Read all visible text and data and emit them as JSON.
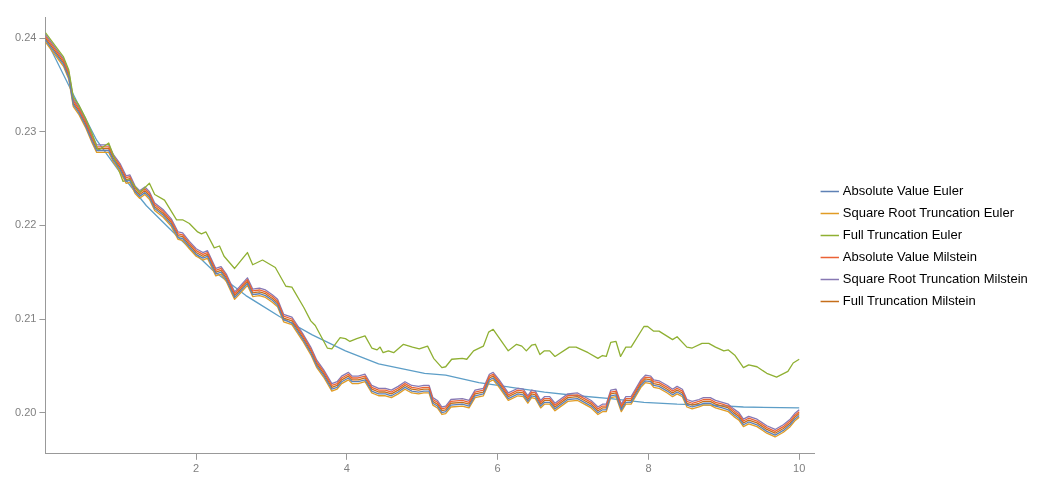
{
  "chart_data": {
    "type": "line",
    "legend": "right",
    "grid": false,
    "marker": "none",
    "line_style": "solid",
    "xlim": [
      0,
      10.2
    ],
    "ylim": [
      0.1956,
      0.2422
    ],
    "xticks": [
      2,
      4,
      6,
      8,
      10
    ],
    "yticks": [
      {
        "value": 0.2,
        "label": "0.20"
      },
      {
        "value": 0.21,
        "label": "0.21"
      },
      {
        "value": 0.22,
        "label": "0.22"
      },
      {
        "value": 0.23,
        "label": "0.23"
      },
      {
        "value": 0.24,
        "label": "0.24"
      }
    ],
    "x": [
      0,
      0.24,
      0.31,
      0.37,
      0.44,
      0.53,
      0.62,
      0.68,
      0.75,
      0.84,
      0.9,
      0.99,
      1.07,
      1.12,
      1.19,
      1.25,
      1.32,
      1.38,
      1.45,
      1.56,
      1.67,
      1.76,
      1.82,
      1.91,
      2,
      2.09,
      2.15,
      2.22,
      2.26,
      2.33,
      2.4,
      2.51,
      2.57,
      2.68,
      2.75,
      2.84,
      2.92,
      3.01,
      3.08,
      3.16,
      3.27,
      3.41,
      3.52,
      3.6,
      3.69,
      3.8,
      3.87,
      3.93,
      4.02,
      4.07,
      4.15,
      4.24,
      4.33,
      4.42,
      4.51,
      4.59,
      4.68,
      4.77,
      4.86,
      4.95,
      5.02,
      5.09,
      5.14,
      5.2,
      5.26,
      5.31,
      5.38,
      5.53,
      5.62,
      5.7,
      5.81,
      5.89,
      5.94,
      6.02,
      6.14,
      6.27,
      6.34,
      6.4,
      6.45,
      6.5,
      6.57,
      6.62,
      6.69,
      6.76,
      6.93,
      7.06,
      7.15,
      7.24,
      7.33,
      7.39,
      7.44,
      7.5,
      7.57,
      7.64,
      7.7,
      7.77,
      7.9,
      7.96,
      8.03,
      8.07,
      8.14,
      8.25,
      8.32,
      8.38,
      8.45,
      8.51,
      8.58,
      8.67,
      8.73,
      8.82,
      8.89,
      8.98,
      9.06,
      9.13,
      9.2,
      9.26,
      9.33,
      9.44,
      9.57,
      9.68,
      9.79,
      9.88,
      9.94,
      10
    ],
    "series": [
      {
        "name": "Absolute Value Euler",
        "color": "#5e81b5",
        "values": [
          0.2398,
          0.2372,
          0.2358,
          0.2329,
          0.2321,
          0.2307,
          0.229,
          0.228,
          0.228,
          0.228,
          0.227,
          0.226,
          0.2247,
          0.2248,
          0.2236,
          0.2231,
          0.2235,
          0.223,
          0.2218,
          0.2211,
          0.2201,
          0.2187,
          0.2186,
          0.2177,
          0.2169,
          0.2165,
          0.2167,
          0.2155,
          0.2148,
          0.215,
          0.2142,
          0.2123,
          0.2128,
          0.2138,
          0.2126,
          0.2127,
          0.2125,
          0.212,
          0.2115,
          0.2099,
          0.2096,
          0.2079,
          0.2064,
          0.205,
          0.204,
          0.2025,
          0.2027,
          0.2033,
          0.2037,
          0.2033,
          0.2033,
          0.2035,
          0.2023,
          0.202,
          0.202,
          0.2018,
          0.2022,
          0.2027,
          0.2023,
          0.2022,
          0.2023,
          0.2023,
          0.201,
          0.2007,
          0.2,
          0.2001,
          0.2008,
          0.2009,
          0.2007,
          0.2018,
          0.202,
          0.2035,
          0.2037,
          0.2029,
          0.2015,
          0.202,
          0.2019,
          0.2012,
          0.2018,
          0.2017,
          0.2007,
          0.2011,
          0.2011,
          0.2004,
          0.2014,
          0.2015,
          0.2011,
          0.2007,
          0.2,
          0.2003,
          0.2003,
          0.2018,
          0.2019,
          0.2003,
          0.2011,
          0.2011,
          0.2029,
          0.2034,
          0.2033,
          0.2029,
          0.2028,
          0.2023,
          0.2019,
          0.2022,
          0.2019,
          0.2008,
          0.2006,
          0.2008,
          0.201,
          0.201,
          0.2007,
          0.2005,
          0.2003,
          0.1998,
          0.1994,
          0.1987,
          0.199,
          0.1987,
          0.198,
          0.1976,
          0.1981,
          0.1987,
          0.1993,
          0.1997
        ]
      },
      {
        "name": "Square Root Truncation Euler",
        "color": "#e19c24",
        "values": [
          0.2396,
          0.237,
          0.2356,
          0.2327,
          0.2319,
          0.2305,
          0.2288,
          0.2278,
          0.2278,
          0.2278,
          0.2268,
          0.2258,
          0.2245,
          0.2246,
          0.2234,
          0.2229,
          0.2233,
          0.2228,
          0.2216,
          0.2209,
          0.2199,
          0.2185,
          0.2184,
          0.2175,
          0.2167,
          0.2163,
          0.2165,
          0.2153,
          0.2146,
          0.2148,
          0.214,
          0.2121,
          0.2126,
          0.2136,
          0.2124,
          0.2125,
          0.2123,
          0.2118,
          0.2113,
          0.2097,
          0.2094,
          0.2077,
          0.2062,
          0.2048,
          0.2038,
          0.2023,
          0.2025,
          0.2031,
          0.2035,
          0.2031,
          0.2031,
          0.2033,
          0.2021,
          0.2018,
          0.2018,
          0.2016,
          0.202,
          0.2025,
          0.2021,
          0.202,
          0.2021,
          0.2021,
          0.2008,
          0.2005,
          0.1998,
          0.1999,
          0.2006,
          0.2007,
          0.2005,
          0.2016,
          0.2018,
          0.2033,
          0.2035,
          0.2027,
          0.2013,
          0.2018,
          0.2017,
          0.201,
          0.2016,
          0.2015,
          0.2005,
          0.2009,
          0.2009,
          0.2002,
          0.2012,
          0.2013,
          0.2009,
          0.2005,
          0.1998,
          0.2001,
          0.2001,
          0.2016,
          0.2017,
          0.2001,
          0.2009,
          0.2009,
          0.2027,
          0.2032,
          0.2031,
          0.2027,
          0.2026,
          0.2021,
          0.2017,
          0.202,
          0.2017,
          0.2006,
          0.2004,
          0.2006,
          0.2008,
          0.2008,
          0.2005,
          0.2003,
          0.2001,
          0.1996,
          0.1992,
          0.1985,
          0.1988,
          0.1985,
          0.1978,
          0.1974,
          0.1979,
          0.1985,
          0.1991,
          0.1995
        ]
      },
      {
        "name": "Full Truncation Euler",
        "color": "#8fb032",
        "x": [
          0,
          0.24,
          0.31,
          0.37,
          0.44,
          0.53,
          0.62,
          0.7,
          0.84,
          1.03,
          1.12,
          1.25,
          1.38,
          1.45,
          1.58,
          1.74,
          1.82,
          1.91,
          2.02,
          2.07,
          2.13,
          2.24,
          2.31,
          2.37,
          2.51,
          2.68,
          2.75,
          2.88,
          3.05,
          3.19,
          3.27,
          3.43,
          3.52,
          3.58,
          3.74,
          3.8,
          3.91,
          3.98,
          4.04,
          4.13,
          4.24,
          4.33,
          4.4,
          4.44,
          4.48,
          4.55,
          4.62,
          4.75,
          4.87,
          4.96,
          5.07,
          5.15,
          5.26,
          5.31,
          5.39,
          5.53,
          5.59,
          5.68,
          5.81,
          5.88,
          5.94,
          6.14,
          6.25,
          6.32,
          6.38,
          6.45,
          6.5,
          6.56,
          6.62,
          6.69,
          6.76,
          6.95,
          7.04,
          7.2,
          7.33,
          7.39,
          7.44,
          7.5,
          7.57,
          7.63,
          7.7,
          7.77,
          7.94,
          7.99,
          8.07,
          8.14,
          8.32,
          8.38,
          8.51,
          8.58,
          8.71,
          8.8,
          8.89,
          9,
          9.06,
          9.15,
          9.26,
          9.33,
          9.44,
          9.57,
          9.7,
          9.85,
          9.92,
          10
        ],
        "values": [
          0.2406,
          0.238,
          0.2366,
          0.2337,
          0.2329,
          0.2315,
          0.2298,
          0.228,
          0.2288,
          0.2247,
          0.2249,
          0.2235,
          0.2245,
          0.2233,
          0.2227,
          0.2206,
          0.2206,
          0.2202,
          0.2193,
          0.2191,
          0.2193,
          0.2176,
          0.2178,
          0.2167,
          0.2154,
          0.2171,
          0.2158,
          0.2163,
          0.2155,
          0.2135,
          0.2134,
          0.2112,
          0.2098,
          0.2093,
          0.2069,
          0.2068,
          0.208,
          0.2079,
          0.2076,
          0.2079,
          0.2082,
          0.2069,
          0.2067,
          0.207,
          0.2064,
          0.2066,
          0.2064,
          0.2073,
          0.207,
          0.2068,
          0.2071,
          0.2058,
          0.2048,
          0.2049,
          0.2057,
          0.2058,
          0.2057,
          0.2066,
          0.2071,
          0.2086,
          0.2089,
          0.2066,
          0.2073,
          0.2071,
          0.2066,
          0.2072,
          0.2073,
          0.2062,
          0.2066,
          0.2066,
          0.206,
          0.207,
          0.207,
          0.2064,
          0.2058,
          0.2061,
          0.206,
          0.2075,
          0.2076,
          0.206,
          0.207,
          0.207,
          0.2092,
          0.2092,
          0.2087,
          0.2087,
          0.2078,
          0.2081,
          0.207,
          0.2069,
          0.2074,
          0.2074,
          0.207,
          0.2066,
          0.2067,
          0.2061,
          0.2048,
          0.2051,
          0.2049,
          0.2042,
          0.2038,
          0.2044,
          0.2053,
          0.2057
        ]
      },
      {
        "name": "Absolute Value Milstein",
        "color": "#eb6235",
        "values": [
          0.2402,
          0.2376,
          0.2362,
          0.2333,
          0.2325,
          0.2311,
          0.2294,
          0.2284,
          0.2284,
          0.2284,
          0.2274,
          0.2264,
          0.2251,
          0.2252,
          0.224,
          0.2235,
          0.2239,
          0.2234,
          0.2222,
          0.2215,
          0.2205,
          0.2191,
          0.219,
          0.2181,
          0.2173,
          0.2169,
          0.2171,
          0.2159,
          0.2152,
          0.2154,
          0.2146,
          0.2127,
          0.2132,
          0.2142,
          0.213,
          0.2131,
          0.2129,
          0.2124,
          0.2119,
          0.2103,
          0.21,
          0.2083,
          0.2068,
          0.2054,
          0.2044,
          0.2029,
          0.2031,
          0.2037,
          0.2041,
          0.2037,
          0.2037,
          0.2039,
          0.2027,
          0.2024,
          0.2024,
          0.2022,
          0.2026,
          0.2031,
          0.2027,
          0.2026,
          0.2027,
          0.2027,
          0.2014,
          0.2011,
          0.2004,
          0.2005,
          0.2012,
          0.2013,
          0.2011,
          0.2022,
          0.2024,
          0.2039,
          0.2041,
          0.2033,
          0.2019,
          0.2024,
          0.2023,
          0.2016,
          0.2022,
          0.2021,
          0.2011,
          0.2015,
          0.2015,
          0.2008,
          0.2018,
          0.2019,
          0.2015,
          0.2011,
          0.2004,
          0.2007,
          0.2007,
          0.2022,
          0.2023,
          0.2007,
          0.2015,
          0.2015,
          0.2033,
          0.2038,
          0.2037,
          0.2033,
          0.2032,
          0.2027,
          0.2023,
          0.2026,
          0.2023,
          0.2012,
          0.201,
          0.2012,
          0.2014,
          0.2014,
          0.2011,
          0.2009,
          0.2007,
          0.2002,
          0.1998,
          0.1991,
          0.1994,
          0.1991,
          0.1984,
          0.198,
          0.1985,
          0.1991,
          0.1997,
          0.2001
        ]
      },
      {
        "name": "Square Root Truncation Milstein",
        "color": "#8778b3",
        "values": [
          0.2404,
          0.2378,
          0.2364,
          0.2335,
          0.2327,
          0.2313,
          0.2296,
          0.2286,
          0.2286,
          0.2286,
          0.2276,
          0.2266,
          0.2253,
          0.2254,
          0.2242,
          0.2237,
          0.2241,
          0.2236,
          0.2224,
          0.2217,
          0.2207,
          0.2193,
          0.2192,
          0.2183,
          0.2175,
          0.2171,
          0.2173,
          0.2161,
          0.2154,
          0.2156,
          0.2148,
          0.2129,
          0.2134,
          0.2144,
          0.2132,
          0.2133,
          0.2131,
          0.2126,
          0.2121,
          0.2105,
          0.2102,
          0.2085,
          0.207,
          0.2056,
          0.2046,
          0.2031,
          0.2033,
          0.2039,
          0.2043,
          0.2039,
          0.2039,
          0.2041,
          0.2029,
          0.2026,
          0.2026,
          0.2024,
          0.2028,
          0.2033,
          0.2029,
          0.2028,
          0.2029,
          0.2029,
          0.2016,
          0.2013,
          0.2006,
          0.2007,
          0.2014,
          0.2015,
          0.2013,
          0.2024,
          0.2026,
          0.2041,
          0.2043,
          0.2035,
          0.2021,
          0.2026,
          0.2025,
          0.2018,
          0.2024,
          0.2023,
          0.2013,
          0.2017,
          0.2017,
          0.201,
          0.202,
          0.2021,
          0.2017,
          0.2013,
          0.2006,
          0.2009,
          0.2009,
          0.2024,
          0.2025,
          0.2009,
          0.2017,
          0.2017,
          0.2035,
          0.204,
          0.2039,
          0.2035,
          0.2034,
          0.2029,
          0.2025,
          0.2028,
          0.2025,
          0.2014,
          0.2012,
          0.2014,
          0.2016,
          0.2016,
          0.2013,
          0.2011,
          0.2009,
          0.2004,
          0.2,
          0.1993,
          0.1996,
          0.1993,
          0.1986,
          0.1982,
          0.1987,
          0.1993,
          0.1999,
          0.2003
        ]
      },
      {
        "name": "Full Truncation Milstein",
        "color": "#c56e1a",
        "values": [
          0.24,
          0.2374,
          0.236,
          0.2331,
          0.2323,
          0.2309,
          0.2292,
          0.2282,
          0.2282,
          0.2282,
          0.2272,
          0.2262,
          0.2249,
          0.225,
          0.2238,
          0.2233,
          0.2237,
          0.2232,
          0.222,
          0.2213,
          0.2203,
          0.2189,
          0.2188,
          0.2179,
          0.2171,
          0.2167,
          0.2169,
          0.2157,
          0.215,
          0.2152,
          0.2144,
          0.2125,
          0.213,
          0.214,
          0.2128,
          0.2129,
          0.2127,
          0.2122,
          0.2117,
          0.2101,
          0.2098,
          0.2081,
          0.2066,
          0.2052,
          0.2042,
          0.2027,
          0.2029,
          0.2035,
          0.2039,
          0.2035,
          0.2035,
          0.2037,
          0.2025,
          0.2022,
          0.2022,
          0.202,
          0.2024,
          0.2029,
          0.2025,
          0.2024,
          0.2025,
          0.2025,
          0.2012,
          0.2009,
          0.2002,
          0.2003,
          0.201,
          0.2011,
          0.2009,
          0.202,
          0.2022,
          0.2037,
          0.2039,
          0.2031,
          0.2017,
          0.2022,
          0.2021,
          0.2014,
          0.202,
          0.2019,
          0.2009,
          0.2013,
          0.2013,
          0.2006,
          0.2016,
          0.2017,
          0.2013,
          0.2009,
          0.2002,
          0.2005,
          0.2005,
          0.202,
          0.2021,
          0.2005,
          0.2013,
          0.2013,
          0.2031,
          0.2036,
          0.2035,
          0.2031,
          0.203,
          0.2025,
          0.2021,
          0.2024,
          0.2021,
          0.201,
          0.2008,
          0.201,
          0.2012,
          0.2012,
          0.2009,
          0.2007,
          0.2005,
          0.2,
          0.1996,
          0.1989,
          0.1992,
          0.1989,
          0.1982,
          0.1978,
          0.1983,
          0.1989,
          0.1995,
          0.1999
        ]
      },
      {
        "color": "#5d9ec7",
        "x": [
          0,
          0.35,
          0.68,
          1.03,
          1.34,
          1.78,
          2.22,
          2.66,
          3.1,
          3.54,
          3.98,
          4.42,
          5.03,
          5.31,
          5.75,
          6.18,
          6.62,
          7.06,
          7.5,
          7.94,
          8.38,
          8.82,
          9.26,
          10
        ],
        "values": [
          0.24,
          0.2343,
          0.2291,
          0.2252,
          0.2221,
          0.2186,
          0.2152,
          0.2125,
          0.2103,
          0.2083,
          0.2066,
          0.2052,
          0.2042,
          0.204,
          0.2032,
          0.2027,
          0.2022,
          0.2018,
          0.2015,
          0.2011,
          0.2009,
          0.2008,
          0.2006,
          0.2005
        ]
      }
    ]
  }
}
